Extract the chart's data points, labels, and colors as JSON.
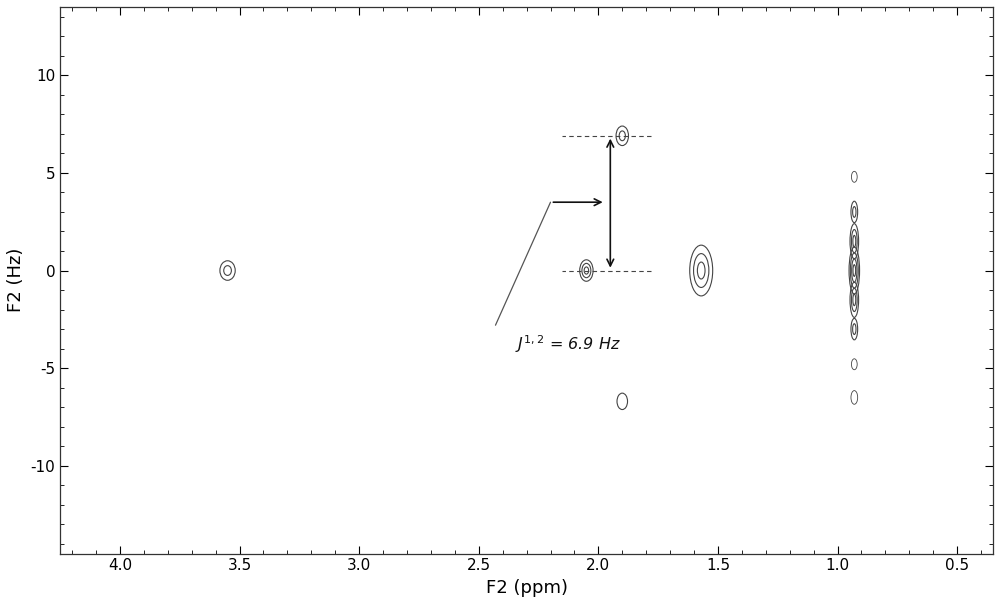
{
  "title": "",
  "xlabel": "F2 (ppm)",
  "ylabel": "F2 (Hz)",
  "xlim": [
    4.25,
    0.35
  ],
  "ylim": [
    -14.5,
    13.5
  ],
  "xticks": [
    4.0,
    3.5,
    3.0,
    2.5,
    2.0,
    1.5,
    1.0,
    0.5
  ],
  "yticks": [
    -10,
    -5,
    0,
    5,
    10
  ],
  "background_color": "#ffffff",
  "figsize": [
    10.0,
    6.04
  ],
  "dpi": 100,
  "annotation_text": "$J^{1,2}$ = 6.9 Hz"
}
